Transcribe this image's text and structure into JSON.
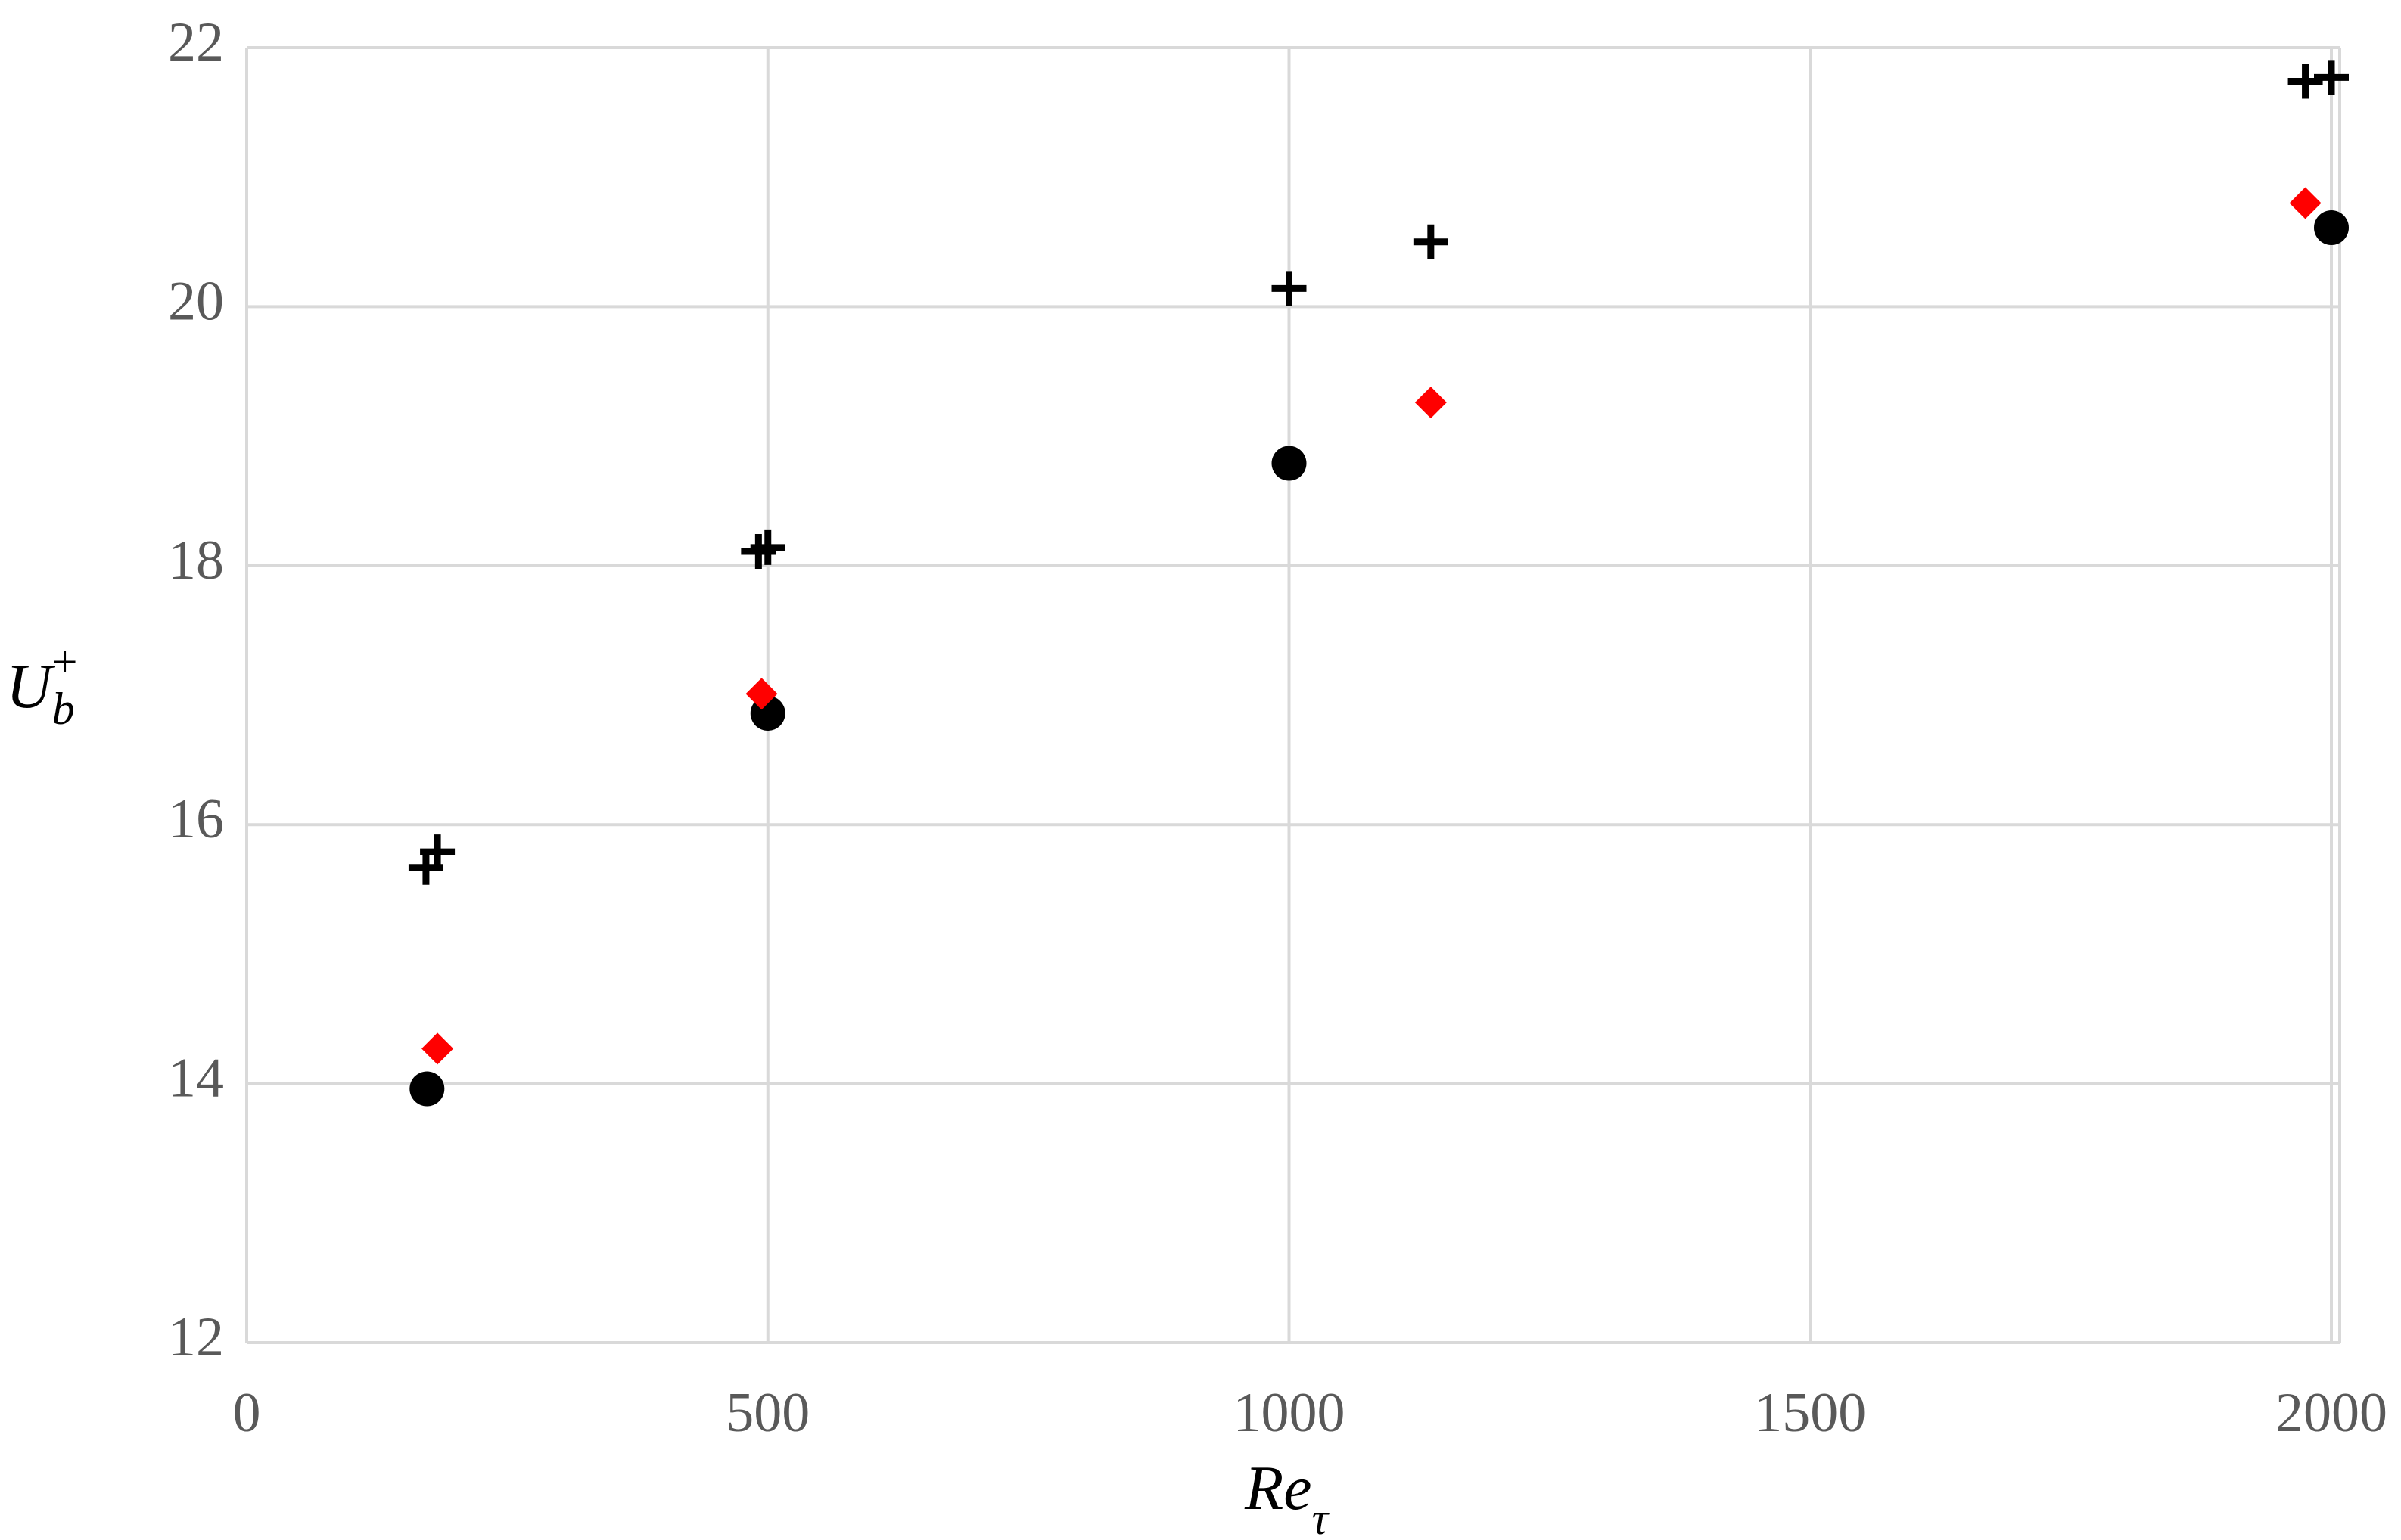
{
  "chart_data": {
    "type": "scatter",
    "xlabel": "Re",
    "xlabel_sub": "τ",
    "ylabel": "U",
    "ylabel_sub": "b",
    "ylabel_sup": "+",
    "xlim": [
      0,
      2000
    ],
    "xticks": [
      0,
      500,
      1000,
      1500,
      2000
    ],
    "ylim": [
      12,
      22
    ],
    "yticks": [
      12,
      14,
      16,
      18,
      20,
      22
    ],
    "grid": true,
    "series": [
      {
        "marker": "circle",
        "color": "#000000",
        "x": [
          173,
          500,
          1000,
          2000
        ],
        "values": [
          13.96,
          16.86,
          18.79,
          20.61
        ]
      },
      {
        "marker": "diamond",
        "color": "#ff0000",
        "x": [
          183,
          494,
          1136,
          1975
        ],
        "values": [
          14.27,
          17.01,
          19.26,
          20.8
        ]
      },
      {
        "marker": "plus",
        "color": "#000000",
        "x": [
          172,
          183,
          491,
          500,
          1000,
          1136,
          1975,
          2000
        ],
        "values": [
          15.67,
          15.79,
          18.11,
          18.14,
          20.14,
          20.5,
          21.74,
          21.77
        ]
      }
    ]
  }
}
